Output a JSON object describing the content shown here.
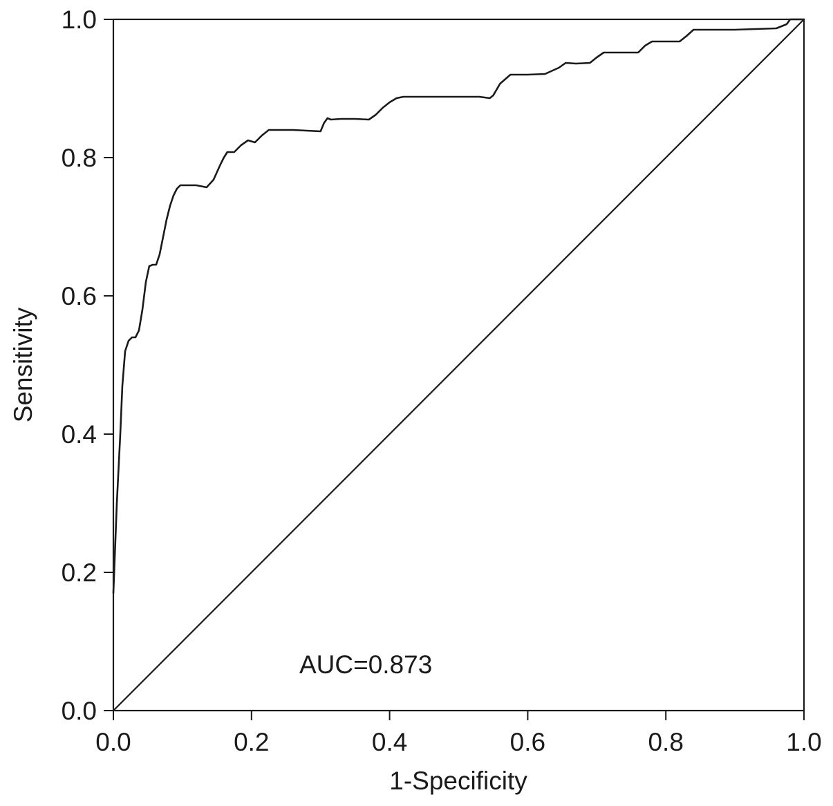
{
  "chart_data": {
    "type": "line",
    "title": "",
    "xlabel": "1-Specificity",
    "ylabel": "Sensitivity",
    "xlim": [
      0,
      1
    ],
    "ylim": [
      0,
      1
    ],
    "xticks": [
      "0.0",
      "0.2",
      "0.4",
      "0.6",
      "0.8",
      "1.0"
    ],
    "yticks": [
      "0.0",
      "0.2",
      "0.4",
      "0.6",
      "0.8",
      "1.0"
    ],
    "grid": false,
    "annotation": "AUC=0.873",
    "series": [
      {
        "role": "roc-curve",
        "x": [
          0.0,
          0.005,
          0.01,
          0.013,
          0.017,
          0.022,
          0.027,
          0.032,
          0.037,
          0.042,
          0.047,
          0.052,
          0.057,
          0.062,
          0.067,
          0.072,
          0.077,
          0.082,
          0.087,
          0.092,
          0.097,
          0.105,
          0.12,
          0.135,
          0.145,
          0.155,
          0.16,
          0.165,
          0.175,
          0.185,
          0.195,
          0.205,
          0.215,
          0.225,
          0.26,
          0.3,
          0.305,
          0.31,
          0.315,
          0.33,
          0.35,
          0.37,
          0.38,
          0.39,
          0.4,
          0.41,
          0.42,
          0.45,
          0.5,
          0.53,
          0.545,
          0.55,
          0.56,
          0.575,
          0.6,
          0.625,
          0.645,
          0.655,
          0.67,
          0.69,
          0.7,
          0.71,
          0.73,
          0.76,
          0.77,
          0.78,
          0.8,
          0.82,
          0.83,
          0.84,
          0.85,
          0.9,
          0.96,
          0.975,
          0.98,
          1.0
        ],
        "y": [
          0.17,
          0.3,
          0.4,
          0.47,
          0.52,
          0.535,
          0.54,
          0.54,
          0.55,
          0.58,
          0.62,
          0.643,
          0.645,
          0.645,
          0.66,
          0.685,
          0.71,
          0.73,
          0.745,
          0.755,
          0.76,
          0.76,
          0.76,
          0.757,
          0.768,
          0.79,
          0.8,
          0.808,
          0.808,
          0.818,
          0.825,
          0.822,
          0.832,
          0.84,
          0.84,
          0.838,
          0.85,
          0.857,
          0.855,
          0.856,
          0.856,
          0.855,
          0.862,
          0.872,
          0.88,
          0.886,
          0.888,
          0.888,
          0.888,
          0.888,
          0.886,
          0.89,
          0.907,
          0.92,
          0.92,
          0.921,
          0.93,
          0.937,
          0.936,
          0.937,
          0.945,
          0.952,
          0.952,
          0.952,
          0.962,
          0.968,
          0.968,
          0.968,
          0.976,
          0.985,
          0.985,
          0.985,
          0.987,
          0.993,
          1.0,
          1.0
        ]
      },
      {
        "role": "reference-line",
        "x": [
          0,
          1
        ],
        "y": [
          0,
          1
        ]
      }
    ]
  }
}
